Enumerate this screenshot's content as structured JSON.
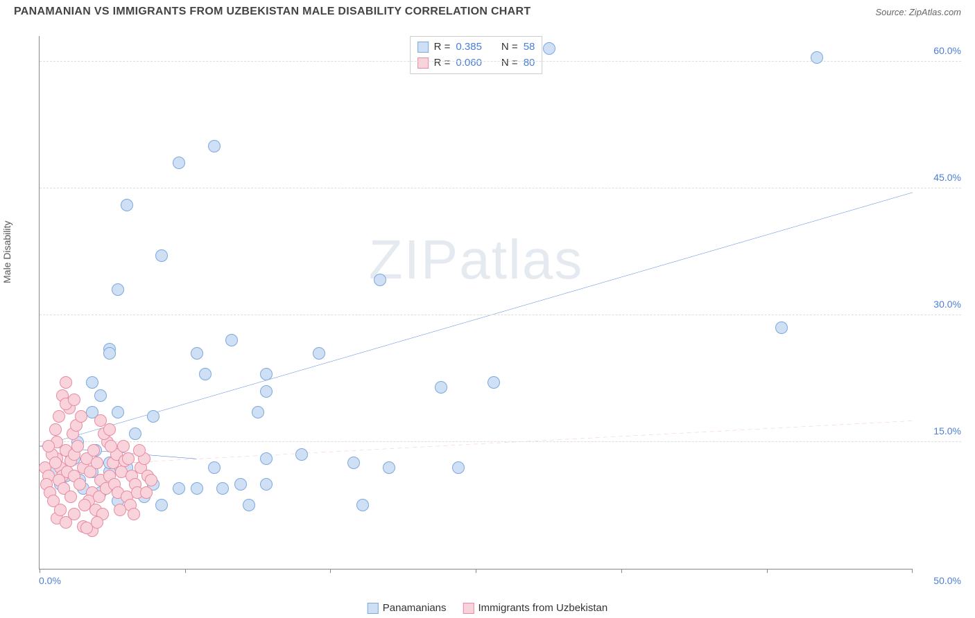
{
  "title": "PANAMANIAN VS IMMIGRANTS FROM UZBEKISTAN MALE DISABILITY CORRELATION CHART",
  "source_label": "Source: ZipAtlas.com",
  "ylabel": "Male Disability",
  "watermark_a": "ZIP",
  "watermark_b": "atlas",
  "chart": {
    "type": "scatter",
    "xlim": [
      0,
      50
    ],
    "ylim": [
      0,
      63
    ],
    "x_tick_step": 8.33,
    "x_label_min": "0.0%",
    "x_label_max": "50.0%",
    "y_gridlines": [
      15,
      30,
      45,
      60
    ],
    "y_labels": [
      "15.0%",
      "30.0%",
      "45.0%",
      "60.0%"
    ],
    "background_color": "#ffffff",
    "grid_color": "#dddddd",
    "axis_color": "#888888",
    "label_color": "#4a7fd8",
    "point_radius": 9,
    "point_border_width": 1
  },
  "series": [
    {
      "name": "Panamanians",
      "fill": "#cfe0f5",
      "stroke": "#7aa7e0",
      "trend_color": "#2f6fd1",
      "trend_width": 3,
      "trend_dash": "none",
      "trend_y_at_xmin": 14.5,
      "trend_y_at_xmax": 44.5,
      "solid_trend_xmax": 9,
      "solid_trend_y_at_solidmax": 13.0,
      "R": "0.385",
      "N": "58",
      "points": [
        [
          29.2,
          61.5
        ],
        [
          44.5,
          60.5
        ],
        [
          10,
          50
        ],
        [
          8,
          48
        ],
        [
          5,
          43
        ],
        [
          7,
          37
        ],
        [
          4.5,
          33
        ],
        [
          19.5,
          34.2
        ],
        [
          4,
          26
        ],
        [
          4,
          25.5
        ],
        [
          3,
          22
        ],
        [
          3.5,
          20.5
        ],
        [
          9,
          25.5
        ],
        [
          11,
          27
        ],
        [
          9.5,
          23
        ],
        [
          13,
          21
        ],
        [
          13,
          23
        ],
        [
          16,
          25.5
        ],
        [
          12.5,
          18.5
        ],
        [
          3,
          18.5
        ],
        [
          4.5,
          18.5
        ],
        [
          6.5,
          18
        ],
        [
          5.5,
          16
        ],
        [
          13,
          13
        ],
        [
          23,
          21.5
        ],
        [
          26,
          22
        ],
        [
          42.5,
          28.5
        ],
        [
          15,
          13.5
        ],
        [
          4,
          11.5
        ],
        [
          6.5,
          10
        ],
        [
          10,
          12
        ],
        [
          8,
          9.5
        ],
        [
          9,
          9.5
        ],
        [
          10.5,
          9.5
        ],
        [
          11.5,
          10
        ],
        [
          13,
          10
        ],
        [
          12,
          7.5
        ],
        [
          18,
          12.5
        ],
        [
          20,
          12
        ],
        [
          24,
          12
        ],
        [
          18.5,
          7.5
        ],
        [
          7,
          7.5
        ],
        [
          6,
          8.5
        ],
        [
          4.5,
          8
        ],
        [
          3.5,
          9
        ],
        [
          2.5,
          9.5
        ],
        [
          1.5,
          11
        ],
        [
          2,
          13
        ],
        [
          1,
          12
        ],
        [
          1.2,
          10
        ],
        [
          0.8,
          11.5
        ],
        [
          2.3,
          10.5
        ],
        [
          3,
          11.5
        ],
        [
          4,
          12.5
        ],
        [
          5,
          12
        ],
        [
          2.2,
          15
        ],
        [
          3.2,
          14
        ],
        [
          1.8,
          13.5
        ]
      ]
    },
    {
      "name": "Immigrants from Uzbekistan",
      "fill": "#f9d3db",
      "stroke": "#e88aa0",
      "trend_color": "#e36f88",
      "trend_width": 1.5,
      "trend_dash": "6,5",
      "trend_y_at_xmin": 12.0,
      "trend_y_at_xmax": 17.5,
      "solid_trend_xmax": 6.5,
      "solid_trend_y_at_solidmax": 12.7,
      "R": "0.060",
      "N": "80",
      "points": [
        [
          0.3,
          12
        ],
        [
          0.5,
          11
        ],
        [
          0.4,
          10
        ],
        [
          0.6,
          9
        ],
        [
          0.8,
          8
        ],
        [
          1.0,
          13
        ],
        [
          1.2,
          12
        ],
        [
          1.3,
          11
        ],
        [
          1.5,
          14
        ],
        [
          1.0,
          15
        ],
        [
          0.7,
          13.5
        ],
        [
          0.9,
          12.5
        ],
        [
          1.1,
          10.5
        ],
        [
          1.4,
          9.5
        ],
        [
          1.6,
          11.5
        ],
        [
          1.8,
          12.8
        ],
        [
          2.0,
          13.5
        ],
        [
          2.2,
          14.5
        ],
        [
          1.9,
          16
        ],
        [
          2.1,
          17
        ],
        [
          2.4,
          18
        ],
        [
          1.7,
          19
        ],
        [
          1.3,
          20.5
        ],
        [
          1.5,
          19.5
        ],
        [
          2.0,
          11
        ],
        [
          2.3,
          10
        ],
        [
          2.5,
          12
        ],
        [
          2.7,
          13
        ],
        [
          2.9,
          11.5
        ],
        [
          3.1,
          14
        ],
        [
          3.3,
          12.5
        ],
        [
          3.5,
          10.5
        ],
        [
          3.0,
          9
        ],
        [
          2.8,
          8
        ],
        [
          2.6,
          7.5
        ],
        [
          3.2,
          7
        ],
        [
          3.4,
          8.5
        ],
        [
          3.6,
          6.5
        ],
        [
          3.8,
          9.5
        ],
        [
          4.0,
          11
        ],
        [
          4.2,
          12.5
        ],
        [
          4.4,
          13.5
        ],
        [
          3.9,
          15
        ],
        [
          3.7,
          16
        ],
        [
          4.1,
          14.5
        ],
        [
          4.3,
          10
        ],
        [
          4.5,
          9
        ],
        [
          4.7,
          11.5
        ],
        [
          4.9,
          12.8
        ],
        [
          5.1,
          13
        ],
        [
          5.3,
          11
        ],
        [
          5.5,
          10
        ],
        [
          5.0,
          8.5
        ],
        [
          5.2,
          7.5
        ],
        [
          5.4,
          6.5
        ],
        [
          5.6,
          9
        ],
        [
          5.8,
          12
        ],
        [
          6.0,
          13
        ],
        [
          6.2,
          11
        ],
        [
          1.0,
          6
        ],
        [
          1.5,
          5.5
        ],
        [
          2.0,
          6.5
        ],
        [
          2.5,
          5
        ],
        [
          3.0,
          4.5
        ],
        [
          1.2,
          7
        ],
        [
          1.8,
          8.5
        ],
        [
          0.5,
          14.5
        ],
        [
          0.9,
          16.5
        ],
        [
          1.1,
          18
        ],
        [
          2.0,
          20
        ],
        [
          1.5,
          22
        ],
        [
          4.8,
          14.5
        ],
        [
          5.7,
          14
        ],
        [
          3.5,
          17.5
        ],
        [
          4.0,
          16.5
        ],
        [
          6.4,
          10.5
        ],
        [
          6.1,
          9
        ],
        [
          4.6,
          7
        ],
        [
          3.3,
          5.5
        ],
        [
          2.7,
          4.8
        ]
      ]
    }
  ],
  "stats_box": {
    "rows": [
      {
        "swatch_fill": "#cfe0f5",
        "swatch_stroke": "#7aa7e0",
        "r_label": "R =",
        "r_val": "0.385",
        "n_label": "N =",
        "n_val": "58"
      },
      {
        "swatch_fill": "#f9d3db",
        "swatch_stroke": "#e88aa0",
        "r_label": "R =",
        "r_val": "0.060",
        "n_label": "N =",
        "n_val": "80"
      }
    ]
  },
  "bottom_legend": [
    {
      "swatch_fill": "#cfe0f5",
      "swatch_stroke": "#7aa7e0",
      "label": "Panamanians"
    },
    {
      "swatch_fill": "#f9d3db",
      "swatch_stroke": "#e88aa0",
      "label": "Immigrants from Uzbekistan"
    }
  ]
}
